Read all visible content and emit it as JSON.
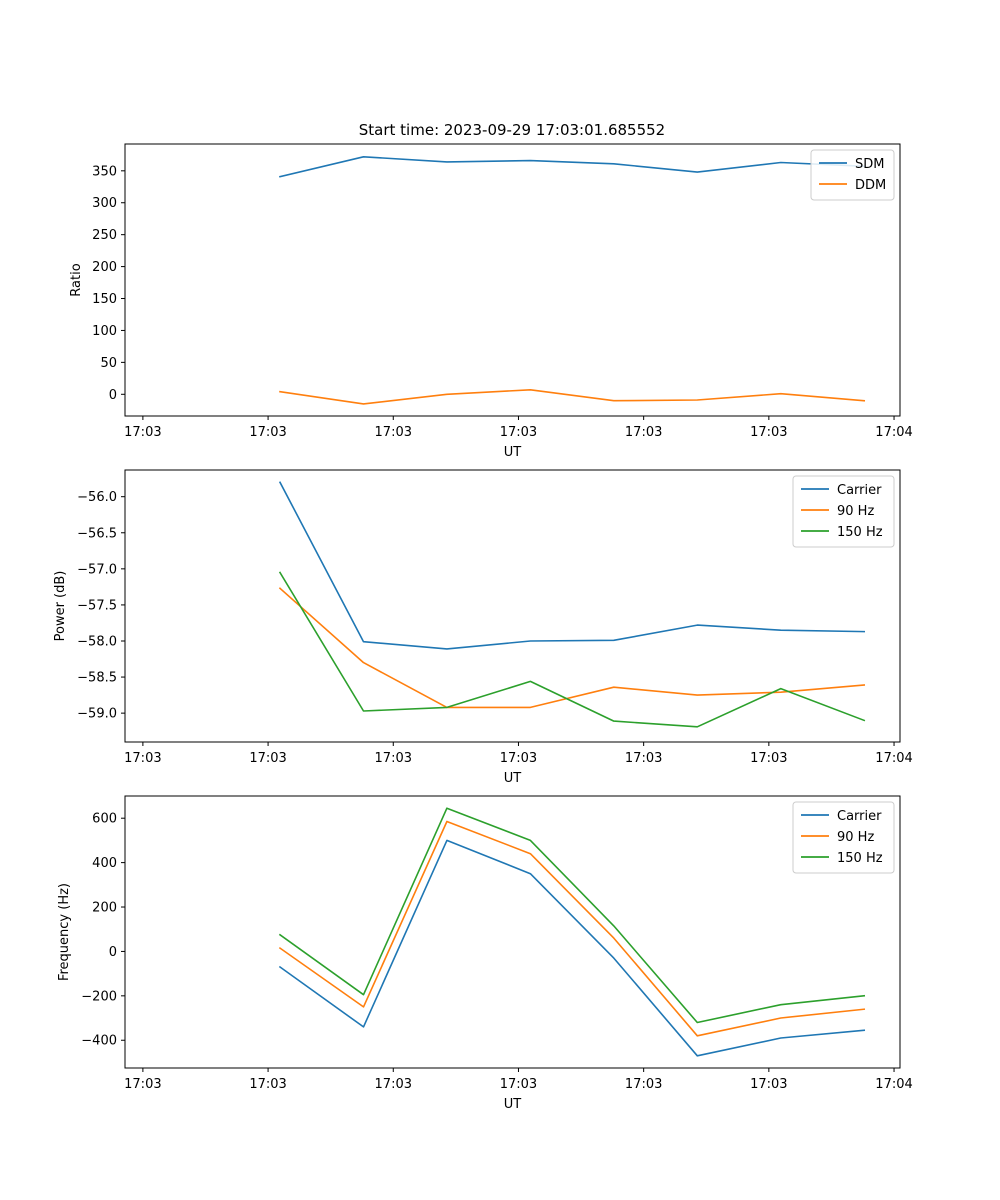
{
  "chart_data": [
    {
      "type": "line",
      "title": "Start time: 2023-09-29 17:03:01.685552",
      "xlabel": "UT",
      "ylabel": "Ratio",
      "x": [
        1.3,
        2.0,
        2.7,
        3.4,
        4.1,
        4.8,
        5.5,
        6.2
      ],
      "xlim": [
        0.0,
        6.5
      ],
      "x_ticks": [
        0.15,
        1.2,
        2.25,
        3.3,
        4.35,
        5.4,
        6.45
      ],
      "x_tick_labels": [
        "17:03",
        "17:03",
        "17:03",
        "17:03",
        "17:03",
        "17:03",
        "17:04"
      ],
      "ylim": [
        -34,
        392
      ],
      "y_ticks": [
        0,
        50,
        100,
        150,
        200,
        250,
        300,
        350
      ],
      "y_tick_labels": [
        "0",
        "50",
        "100",
        "150",
        "200",
        "250",
        "300",
        "350"
      ],
      "legend_position": "top-right",
      "series": [
        {
          "name": "SDM",
          "color": "#1f77b4",
          "values": [
            341,
            372,
            364,
            366,
            361,
            348,
            363,
            357
          ]
        },
        {
          "name": "DDM",
          "color": "#ff7f0e",
          "values": [
            4,
            -15,
            0,
            7,
            -10,
            -9,
            1,
            -10
          ]
        }
      ]
    },
    {
      "type": "line",
      "title": "",
      "xlabel": "UT",
      "ylabel": "Power (dB)",
      "x": [
        1.3,
        2.0,
        2.7,
        3.4,
        4.1,
        4.8,
        5.5,
        6.2
      ],
      "xlim": [
        0.0,
        6.5
      ],
      "x_ticks": [
        0.15,
        1.2,
        2.25,
        3.3,
        4.35,
        5.4,
        6.45
      ],
      "x_tick_labels": [
        "17:03",
        "17:03",
        "17:03",
        "17:03",
        "17:03",
        "17:03",
        "17:04"
      ],
      "ylim": [
        -59.4,
        -55.63
      ],
      "y_ticks": [
        -59.0,
        -58.5,
        -58.0,
        -57.5,
        -57.0,
        -56.5,
        -56.0
      ],
      "y_tick_labels": [
        "−59.0",
        "−58.5",
        "−58.0",
        "−57.5",
        "−57.0",
        "−56.5",
        "−56.0"
      ],
      "legend_position": "top-right",
      "series": [
        {
          "name": "Carrier",
          "color": "#1f77b4",
          "values": [
            -55.8,
            -58.01,
            -58.11,
            -58.0,
            -57.99,
            -57.78,
            -57.85,
            -57.87
          ]
        },
        {
          "name": "90 Hz",
          "color": "#ff7f0e",
          "values": [
            -57.27,
            -58.3,
            -58.92,
            -58.92,
            -58.64,
            -58.75,
            -58.71,
            -58.61
          ]
        },
        {
          "name": "150 Hz",
          "color": "#2ca02c",
          "values": [
            -57.05,
            -58.97,
            -58.92,
            -58.56,
            -59.11,
            -59.19,
            -58.66,
            -59.1
          ]
        }
      ]
    },
    {
      "type": "line",
      "title": "",
      "xlabel": "UT",
      "ylabel": "Frequency (Hz)",
      "x": [
        1.3,
        2.0,
        2.7,
        3.4,
        4.1,
        4.8,
        5.5,
        6.2
      ],
      "xlim": [
        0.0,
        6.5
      ],
      "x_ticks": [
        0.15,
        1.2,
        2.25,
        3.3,
        4.35,
        5.4,
        6.45
      ],
      "x_tick_labels": [
        "17:03",
        "17:03",
        "17:03",
        "17:03",
        "17:03",
        "17:03",
        "17:04"
      ],
      "ylim": [
        -525,
        700
      ],
      "y_ticks": [
        -400,
        -200,
        0,
        200,
        400,
        600
      ],
      "y_tick_labels": [
        "−400",
        "−200",
        "0",
        "200",
        "400",
        "600"
      ],
      "legend_position": "top-right",
      "series": [
        {
          "name": "Carrier",
          "color": "#1f77b4",
          "values": [
            -70,
            -340,
            500,
            350,
            -30,
            -470,
            -390,
            -355
          ]
        },
        {
          "name": "90 Hz",
          "color": "#ff7f0e",
          "values": [
            15,
            -250,
            585,
            440,
            60,
            -380,
            -300,
            -260
          ]
        },
        {
          "name": "150 Hz",
          "color": "#2ca02c",
          "values": [
            75,
            -195,
            645,
            500,
            115,
            -320,
            -240,
            -200
          ]
        }
      ]
    }
  ]
}
